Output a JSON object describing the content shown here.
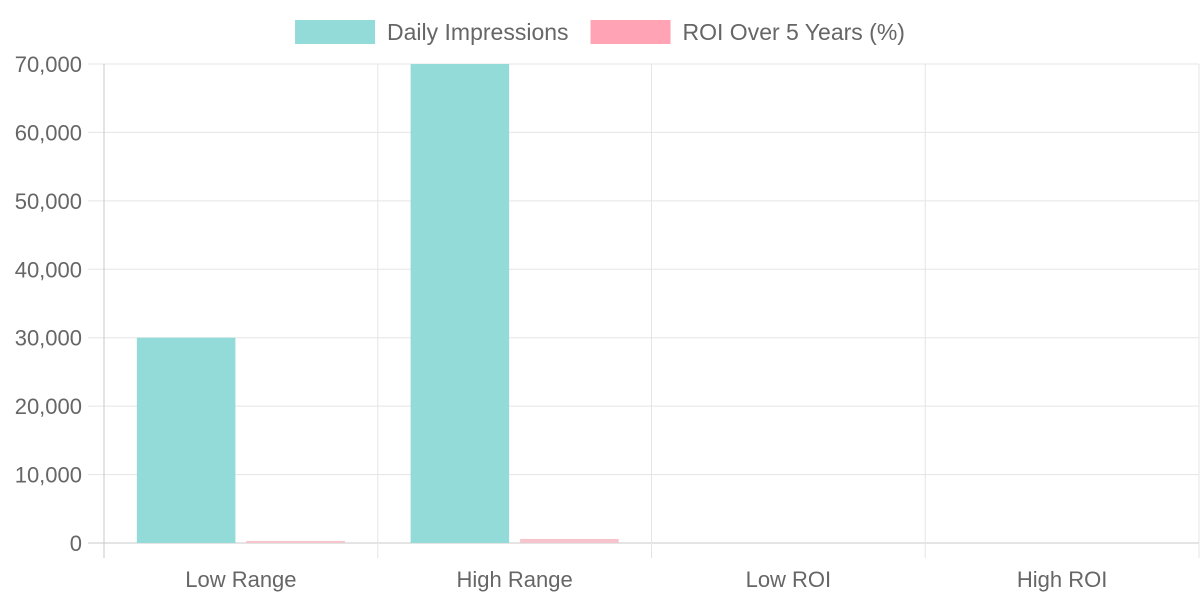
{
  "chart_data": {
    "type": "bar",
    "categories": [
      "Low Range",
      "High Range",
      "Low ROI",
      "High ROI"
    ],
    "series": [
      {
        "name": "Daily Impressions",
        "values": [
          30000,
          70000,
          0,
          0
        ],
        "color": "#93dbd9",
        "legend_color": "#93dbd9"
      },
      {
        "name": "ROI Over 5 Years (%)",
        "values": [
          300,
          600,
          0,
          0
        ],
        "color": "#f6c4cd",
        "legend_color": "#ffa3b5"
      }
    ],
    "title": "",
    "xlabel": "",
    "ylabel": "",
    "ylim": [
      0,
      70000
    ],
    "yticks": [
      0,
      10000,
      20000,
      30000,
      40000,
      50000,
      60000,
      70000
    ],
    "ytick_labels": [
      "0",
      "10,000",
      "20,000",
      "30,000",
      "40,000",
      "50,000",
      "60,000",
      "70,000"
    ],
    "grid": true,
    "legend_position": "top-center"
  },
  "colors": {
    "grid": "#e5e5e5",
    "axis": "#c8c8c8",
    "text": "#666666"
  }
}
